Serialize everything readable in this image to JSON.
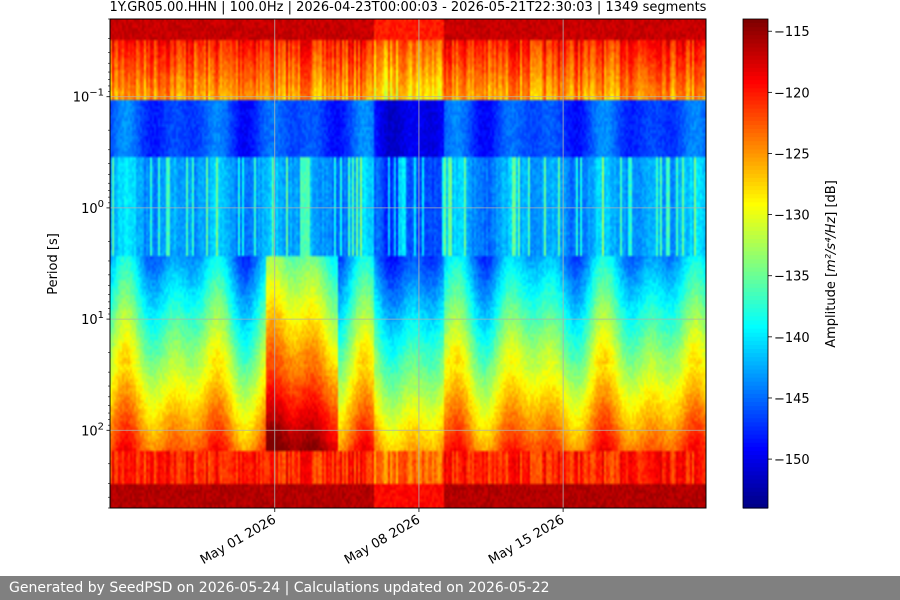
{
  "chart_data": {
    "type": "heatmap",
    "title": "1Y.GR05.00.HHN | 100.0Hz | 2026-04-23T00:00:03 - 2026-05-21T22:30:03 | 1349 segments",
    "xlabel": "",
    "ylabel": "Period [s]",
    "x_range": [
      "2026-04-23T00:00:03",
      "2026-05-21T22:30:03"
    ],
    "x_ticks": [
      {
        "date": "2026-05-01",
        "label": "May 01 2026"
      },
      {
        "date": "2026-05-08",
        "label": "May 08 2026"
      },
      {
        "date": "2026-05-15",
        "label": "May 15 2026"
      }
    ],
    "y_scale": "log",
    "y_inverted": true,
    "y_range": [
      0.02,
      500
    ],
    "y_ticks": [
      {
        "value": 0.1,
        "base": "10",
        "exp": "−1"
      },
      {
        "value": 1,
        "base": "10",
        "exp": "0"
      },
      {
        "value": 10,
        "base": "10",
        "exp": "1"
      },
      {
        "value": 100,
        "base": "10",
        "exp": "2"
      }
    ],
    "grid": true,
    "colormap": "jet",
    "colorbar": {
      "label_prefix": "Amplitude [",
      "label_unit_html": "m²/s⁴/Hz",
      "label_suffix": "] [dB]",
      "range": [
        -154,
        -114
      ],
      "ticks": [
        -115,
        -120,
        -125,
        -130,
        -135,
        -140,
        -145,
        -150
      ],
      "tick_labels": [
        "−115",
        "−120",
        "−125",
        "−130",
        "−135",
        "−140",
        "−145",
        "−150"
      ]
    },
    "segments": 1349
  },
  "footer": {
    "text": "Generated by SeedPSD on 2026-05-24 | Calculations updated on 2026-05-22"
  }
}
